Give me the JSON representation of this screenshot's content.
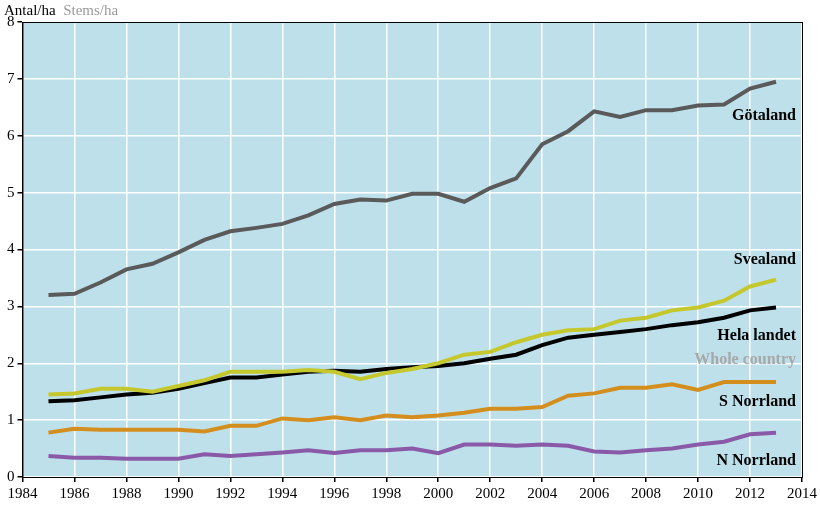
{
  "chart_data": {
    "type": "line",
    "y_label": "Antal/ha",
    "y_label_en": "Stems/ha",
    "x": [
      1985,
      1986,
      1987,
      1988,
      1989,
      1990,
      1991,
      1992,
      1993,
      1994,
      1995,
      1996,
      1997,
      1998,
      1999,
      2000,
      2001,
      2002,
      2003,
      2004,
      2005,
      2006,
      2007,
      2008,
      2009,
      2010,
      2011,
      2012,
      2013
    ],
    "xlim": [
      1984,
      2014
    ],
    "xticks": [
      1984,
      1986,
      1988,
      1990,
      1992,
      1994,
      1996,
      1998,
      2000,
      2002,
      2004,
      2006,
      2008,
      2010,
      2012,
      2014
    ],
    "ylim": [
      0,
      8
    ],
    "yticks": [
      0,
      1,
      2,
      3,
      4,
      5,
      6,
      7,
      8
    ],
    "grid": true,
    "series": [
      {
        "name": "Götaland",
        "color": "#5a5a5a",
        "values": [
          3.2,
          3.22,
          3.42,
          3.65,
          3.75,
          3.95,
          4.17,
          4.32,
          4.38,
          4.45,
          4.6,
          4.8,
          4.88,
          4.86,
          4.98,
          4.98,
          4.84,
          5.08,
          5.25,
          5.85,
          6.08,
          6.43,
          6.33,
          6.45,
          6.45,
          6.53,
          6.55,
          6.83,
          6.95
        ]
      },
      {
        "name": "Svealand",
        "color": "#c5c82c",
        "values": [
          1.45,
          1.47,
          1.55,
          1.55,
          1.5,
          1.6,
          1.7,
          1.85,
          1.85,
          1.85,
          1.88,
          1.85,
          1.72,
          1.83,
          1.9,
          2.0,
          2.15,
          2.2,
          2.37,
          2.5,
          2.58,
          2.6,
          2.75,
          2.8,
          2.93,
          2.98,
          3.1,
          3.35,
          3.47
        ]
      },
      {
        "name": "Hela landet",
        "name_en": "Whole country",
        "color": "#000000",
        "values": [
          1.33,
          1.35,
          1.4,
          1.45,
          1.48,
          1.55,
          1.65,
          1.75,
          1.75,
          1.8,
          1.85,
          1.87,
          1.85,
          1.9,
          1.93,
          1.95,
          2.0,
          2.08,
          2.15,
          2.32,
          2.45,
          2.5,
          2.55,
          2.6,
          2.67,
          2.72,
          2.8,
          2.93,
          2.98
        ]
      },
      {
        "name": "S Norrland",
        "color": "#d48e1e",
        "values": [
          0.78,
          0.85,
          0.83,
          0.83,
          0.83,
          0.83,
          0.8,
          0.9,
          0.9,
          1.03,
          1.0,
          1.05,
          1.0,
          1.08,
          1.05,
          1.08,
          1.13,
          1.2,
          1.2,
          1.23,
          1.43,
          1.47,
          1.57,
          1.57,
          1.63,
          1.53,
          1.67,
          1.67,
          1.67
        ]
      },
      {
        "name": "N Norrland",
        "color": "#8a5aa8",
        "values": [
          0.37,
          0.34,
          0.34,
          0.32,
          0.32,
          0.32,
          0.4,
          0.37,
          0.4,
          0.43,
          0.47,
          0.42,
          0.47,
          0.47,
          0.5,
          0.42,
          0.57,
          0.57,
          0.55,
          0.57,
          0.55,
          0.45,
          0.43,
          0.47,
          0.5,
          0.57,
          0.62,
          0.75,
          0.78
        ]
      }
    ]
  }
}
